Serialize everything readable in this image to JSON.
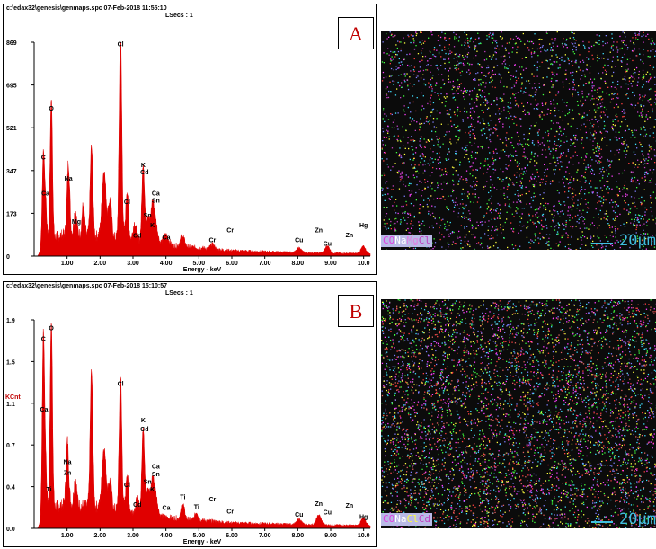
{
  "chart_data": [
    {
      "type": "area",
      "panel_label": "A",
      "header": "c:\\edax32\\genesis\\genmaps.spc  07-Feb-2018 11:55:10",
      "lsecs": "LSecs : 1",
      "xlabel": "Energy - keV",
      "ylabel": "",
      "xlim": [
        0.0,
        10.2
      ],
      "ylim": [
        0,
        869
      ],
      "x_ticks": [
        "1.00",
        "2.00",
        "3.00",
        "4.00",
        "5.00",
        "6.00",
        "7.00",
        "8.00",
        "9.00",
        "10.0"
      ],
      "y_ticks": [
        "0",
        "173",
        "347",
        "521",
        "695",
        "869"
      ],
      "color": "#e00000",
      "peaks": [
        {
          "x": 0.28,
          "y": 380,
          "w": 0.035
        },
        {
          "x": 0.35,
          "y": 150,
          "w": 0.03
        },
        {
          "x": 0.52,
          "y": 580,
          "w": 0.035
        },
        {
          "x": 1.04,
          "y": 290,
          "w": 0.04
        },
        {
          "x": 1.25,
          "y": 100,
          "w": 0.04
        },
        {
          "x": 1.49,
          "y": 120,
          "w": 0.04
        },
        {
          "x": 1.74,
          "y": 360,
          "w": 0.04
        },
        {
          "x": 2.12,
          "y": 270,
          "w": 0.06
        },
        {
          "x": 2.3,
          "y": 150,
          "w": 0.05
        },
        {
          "x": 2.62,
          "y": 840,
          "w": 0.04
        },
        {
          "x": 2.82,
          "y": 200,
          "w": 0.04
        },
        {
          "x": 3.05,
          "y": 70,
          "w": 0.05
        },
        {
          "x": 3.31,
          "y": 320,
          "w": 0.04
        },
        {
          "x": 3.45,
          "y": 110,
          "w": 0.05
        },
        {
          "x": 3.59,
          "y": 150,
          "w": 0.05
        },
        {
          "x": 3.69,
          "y": 80,
          "w": 0.06
        },
        {
          "x": 4.0,
          "y": 40,
          "w": 0.08
        },
        {
          "x": 4.5,
          "y": 45,
          "w": 0.06
        },
        {
          "x": 5.41,
          "y": 20,
          "w": 0.06
        },
        {
          "x": 8.04,
          "y": 20,
          "w": 0.07
        },
        {
          "x": 8.9,
          "y": 30,
          "w": 0.07
        },
        {
          "x": 9.99,
          "y": 30,
          "w": 0.07
        }
      ],
      "background": [
        [
          0.1,
          0
        ],
        [
          0.4,
          70
        ],
        [
          1.0,
          90
        ],
        [
          2.0,
          80
        ],
        [
          3.0,
          65
        ],
        [
          4.0,
          45
        ],
        [
          6.0,
          22
        ],
        [
          8.0,
          14
        ],
        [
          10.2,
          10
        ]
      ],
      "peak_labels": [
        {
          "text": "C",
          "x": 0.28,
          "y": 385
        },
        {
          "text": "Ca",
          "x": 0.34,
          "y": 240
        },
        {
          "text": "O",
          "x": 0.52,
          "y": 585
        },
        {
          "text": "Na",
          "x": 1.04,
          "y": 300
        },
        {
          "text": "Mg",
          "x": 1.28,
          "y": 125
        },
        {
          "text": "Cl",
          "x": 2.62,
          "y": 845
        },
        {
          "text": "Cl",
          "x": 2.82,
          "y": 205
        },
        {
          "text": "Cd",
          "x": 3.13,
          "y": 68
        },
        {
          "text": "K",
          "x": 3.31,
          "y": 355
        },
        {
          "text": "Cd",
          "x": 3.35,
          "y": 325
        },
        {
          "text": "Ca",
          "x": 3.69,
          "y": 240
        },
        {
          "text": "Sn",
          "x": 3.69,
          "y": 210
        },
        {
          "text": "Sn",
          "x": 3.44,
          "y": 150
        },
        {
          "text": "K",
          "x": 3.59,
          "y": 110
        },
        {
          "text": "Ca",
          "x": 4.01,
          "y": 60
        },
        {
          "text": "Cr",
          "x": 5.41,
          "y": 50
        },
        {
          "text": "Cr",
          "x": 5.95,
          "y": 90
        },
        {
          "text": "Cu",
          "x": 8.04,
          "y": 50
        },
        {
          "text": "Zn",
          "x": 8.64,
          "y": 90
        },
        {
          "text": "Cu",
          "x": 8.9,
          "y": 35
        },
        {
          "text": "Zn",
          "x": 9.57,
          "y": 70
        },
        {
          "text": "Hg",
          "x": 10.0,
          "y": 110
        }
      ]
    },
    {
      "type": "area",
      "panel_label": "B",
      "header": "c:\\edax32\\genesis\\genmaps.spc  07-Feb-2018 15:10:57",
      "lsecs": "LSecs : 1",
      "xlabel": "Energy - keV",
      "ylabel": "KCnt",
      "xlim": [
        0.0,
        10.2
      ],
      "ylim": [
        0.0,
        1.9
      ],
      "x_ticks": [
        "1.00",
        "2.00",
        "3.00",
        "4.00",
        "5.00",
        "6.00",
        "7.00",
        "8.00",
        "9.00",
        "10.0"
      ],
      "y_ticks": [
        "0.0",
        "0.4",
        "0.7",
        "1.1",
        "1.5",
        "1.9"
      ],
      "color": "#e00000",
      "peaks": [
        {
          "x": 0.28,
          "y": 1.68,
          "w": 0.035
        },
        {
          "x": 0.35,
          "y": 0.4,
          "w": 0.03
        },
        {
          "x": 0.52,
          "y": 1.73,
          "w": 0.035
        },
        {
          "x": 1.01,
          "y": 0.57,
          "w": 0.04
        },
        {
          "x": 1.25,
          "y": 0.25,
          "w": 0.04
        },
        {
          "x": 1.74,
          "y": 1.23,
          "w": 0.04
        },
        {
          "x": 2.12,
          "y": 0.55,
          "w": 0.06
        },
        {
          "x": 2.3,
          "y": 0.25,
          "w": 0.05
        },
        {
          "x": 2.62,
          "y": 1.23,
          "w": 0.04
        },
        {
          "x": 2.82,
          "y": 0.35,
          "w": 0.04
        },
        {
          "x": 3.13,
          "y": 0.12,
          "w": 0.05
        },
        {
          "x": 3.31,
          "y": 0.8,
          "w": 0.04
        },
        {
          "x": 3.45,
          "y": 0.25,
          "w": 0.05
        },
        {
          "x": 3.59,
          "y": 0.3,
          "w": 0.05
        },
        {
          "x": 3.69,
          "y": 0.18,
          "w": 0.06
        },
        {
          "x": 4.51,
          "y": 0.14,
          "w": 0.05
        },
        {
          "x": 4.93,
          "y": 0.07,
          "w": 0.05
        },
        {
          "x": 8.04,
          "y": 0.05,
          "w": 0.07
        },
        {
          "x": 8.64,
          "y": 0.09,
          "w": 0.07
        },
        {
          "x": 9.99,
          "y": 0.07,
          "w": 0.07
        }
      ],
      "background": [
        [
          0.1,
          0.0
        ],
        [
          0.4,
          0.18
        ],
        [
          1.0,
          0.22
        ],
        [
          2.0,
          0.19
        ],
        [
          3.0,
          0.15
        ],
        [
          4.0,
          0.1
        ],
        [
          6.0,
          0.05
        ],
        [
          8.0,
          0.035
        ],
        [
          10.2,
          0.025
        ]
      ],
      "peak_labels": [
        {
          "text": "C",
          "x": 0.28,
          "y": 1.69
        },
        {
          "text": "O",
          "x": 0.52,
          "y": 1.79
        },
        {
          "text": "Ca",
          "x": 0.3,
          "y": 1.05
        },
        {
          "text": "Na",
          "x": 1.01,
          "y": 0.57
        },
        {
          "text": "Zn",
          "x": 1.01,
          "y": 0.47
        },
        {
          "text": "Ti",
          "x": 0.45,
          "y": 0.32
        },
        {
          "text": "Cl",
          "x": 2.62,
          "y": 1.28
        },
        {
          "text": "Cl",
          "x": 2.82,
          "y": 0.36
        },
        {
          "text": "Cd",
          "x": 3.13,
          "y": 0.18
        },
        {
          "text": "K",
          "x": 3.31,
          "y": 0.95
        },
        {
          "text": "Cd",
          "x": 3.35,
          "y": 0.87
        },
        {
          "text": "Ca",
          "x": 3.69,
          "y": 0.53
        },
        {
          "text": "Sn",
          "x": 3.69,
          "y": 0.46
        },
        {
          "text": "Sn",
          "x": 3.44,
          "y": 0.39
        },
        {
          "text": "K",
          "x": 3.59,
          "y": 0.32
        },
        {
          "text": "Ca",
          "x": 4.01,
          "y": 0.15
        },
        {
          "text": "Ti",
          "x": 4.51,
          "y": 0.25
        },
        {
          "text": "Ti",
          "x": 4.93,
          "y": 0.16
        },
        {
          "text": "Cr",
          "x": 5.41,
          "y": 0.23
        },
        {
          "text": "Cr",
          "x": 5.95,
          "y": 0.12
        },
        {
          "text": "Cu",
          "x": 8.04,
          "y": 0.09
        },
        {
          "text": "Zn",
          "x": 8.64,
          "y": 0.19
        },
        {
          "text": "Cu",
          "x": 8.9,
          "y": 0.11
        },
        {
          "text": "Zn",
          "x": 9.57,
          "y": 0.17
        },
        {
          "text": "Hg",
          "x": 10.0,
          "y": 0.07
        }
      ]
    }
  ],
  "maps": [
    {
      "legend": [
        {
          "text": "C",
          "color": "#e040e0"
        },
        {
          "text": "O",
          "color": "#e040e0"
        },
        {
          "text": "Na",
          "color": "#ffffff"
        },
        {
          "text": "Mg",
          "color": "#e080e0"
        },
        {
          "text": "Cl",
          "color": "#c040c0"
        }
      ],
      "scale": "20μm",
      "dot_colors": [
        "#ff40ff",
        "#c040c0",
        "#40ff40",
        "#ffff40",
        "#40e0ff",
        "#ff4040",
        "#8080ff"
      ]
    },
    {
      "legend": [
        {
          "text": "C",
          "color": "#e040e0"
        },
        {
          "text": "O",
          "color": "#e040e0"
        },
        {
          "text": "Na",
          "color": "#ffffff"
        },
        {
          "text": "Cl",
          "color": "#ffff40"
        },
        {
          "text": "Cd",
          "color": "#c040c0"
        }
      ],
      "scale": "20μm",
      "dot_colors": [
        "#40e0ff",
        "#ff4040",
        "#40ff40",
        "#ffff40",
        "#ff40ff",
        "#8080ff",
        "#e06060"
      ]
    }
  ]
}
